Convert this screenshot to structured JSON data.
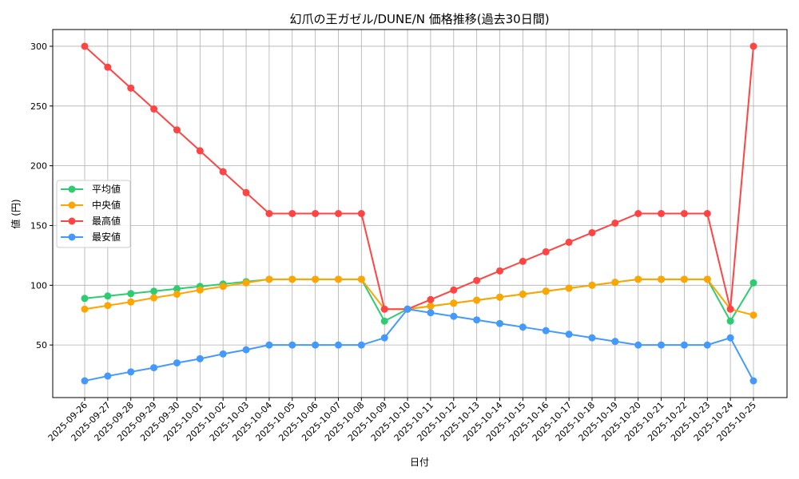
{
  "chart_data": {
    "type": "line",
    "title": "幻爪の王ガゼル/DUNE/N 価格推移(過去30日間)",
    "xlabel": "日付",
    "ylabel": "値 (円)",
    "ylim": [
      6,
      314
    ],
    "yticks": [
      50,
      100,
      150,
      200,
      250,
      300
    ],
    "grid": true,
    "legend_position": "center-left",
    "categories": [
      "2025-09-26",
      "2025-09-27",
      "2025-09-28",
      "2025-09-29",
      "2025-09-30",
      "2025-10-01",
      "2025-10-02",
      "2025-10-03",
      "2025-10-04",
      "2025-10-05",
      "2025-10-06",
      "2025-10-07",
      "2025-10-08",
      "2025-10-09",
      "2025-10-10",
      "2025-10-11",
      "2025-10-12",
      "2025-10-13",
      "2025-10-14",
      "2025-10-15",
      "2025-10-16",
      "2025-10-17",
      "2025-10-18",
      "2025-10-19",
      "2025-10-20",
      "2025-10-21",
      "2025-10-22",
      "2025-10-23",
      "2025-10-24",
      "2025-10-25"
    ],
    "series": [
      {
        "name": "平均値",
        "color": "#2ecc71",
        "values": [
          89,
          91,
          93,
          95,
          97,
          99,
          101,
          103,
          105,
          105,
          105,
          105,
          105,
          70,
          80,
          82.5,
          85,
          87.5,
          90,
          92.5,
          95,
          97.5,
          100,
          102.5,
          105,
          105,
          105,
          105,
          70,
          102
        ]
      },
      {
        "name": "中央値",
        "color": "#ffa500",
        "values": [
          80,
          83,
          86,
          89.5,
          92.5,
          96,
          99,
          102,
          105,
          105,
          105,
          105,
          105,
          80,
          80,
          82.5,
          85,
          87.5,
          90,
          92.5,
          95,
          97.5,
          100,
          102.5,
          105,
          105,
          105,
          105,
          80,
          75
        ]
      },
      {
        "name": "最高値",
        "color": "#ff4444",
        "values": [
          300,
          282.5,
          265,
          247.5,
          230,
          212.5,
          195,
          177.5,
          160,
          160,
          160,
          160,
          160,
          80,
          80,
          88,
          96,
          104,
          112,
          120,
          128,
          136,
          144,
          152,
          160,
          160,
          160,
          160,
          80,
          300
        ]
      },
      {
        "name": "最安値",
        "color": "#4499ff",
        "values": [
          20,
          24,
          27.5,
          31,
          35,
          38.5,
          42.5,
          46,
          50,
          50,
          50,
          50,
          50,
          56,
          80,
          77,
          74,
          71,
          68,
          65,
          62,
          59,
          56,
          53,
          50,
          50,
          50,
          50,
          56,
          20
        ]
      }
    ]
  }
}
